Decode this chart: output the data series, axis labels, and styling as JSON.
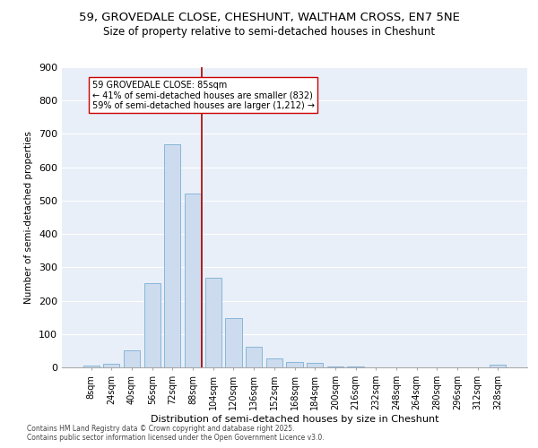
{
  "title1": "59, GROVEDALE CLOSE, CHESHUNT, WALTHAM CROSS, EN7 5NE",
  "title2": "Size of property relative to semi-detached houses in Cheshunt",
  "xlabel": "Distribution of semi-detached houses by size in Cheshunt",
  "ylabel": "Number of semi-detached properties",
  "bar_labels": [
    "8sqm",
    "24sqm",
    "40sqm",
    "56sqm",
    "72sqm",
    "88sqm",
    "104sqm",
    "120sqm",
    "136sqm",
    "152sqm",
    "168sqm",
    "184sqm",
    "200sqm",
    "216sqm",
    "232sqm",
    "248sqm",
    "264sqm",
    "280sqm",
    "296sqm",
    "312sqm",
    "328sqm"
  ],
  "bar_values": [
    5,
    10,
    52,
    252,
    668,
    520,
    270,
    148,
    63,
    27,
    17,
    13,
    4,
    2,
    1,
    1,
    0,
    0,
    0,
    0,
    8
  ],
  "bar_color": "#ccdcee",
  "bar_edge_color": "#7bafd4",
  "vline_color": "#aa0000",
  "vline_x": 5.42,
  "annotation_box_edge": "#cc0000",
  "ylim": [
    0,
    900
  ],
  "yticks": [
    0,
    100,
    200,
    300,
    400,
    500,
    600,
    700,
    800,
    900
  ],
  "bg_color": "#e8eff8",
  "property_label": "59 GROVEDALE CLOSE: 85sqm",
  "pct_smaller": 41,
  "count_smaller": 832,
  "pct_larger": 59,
  "count_larger": 1212,
  "footer1": "Contains HM Land Registry data © Crown copyright and database right 2025.",
  "footer2": "Contains public sector information licensed under the Open Government Licence v3.0."
}
